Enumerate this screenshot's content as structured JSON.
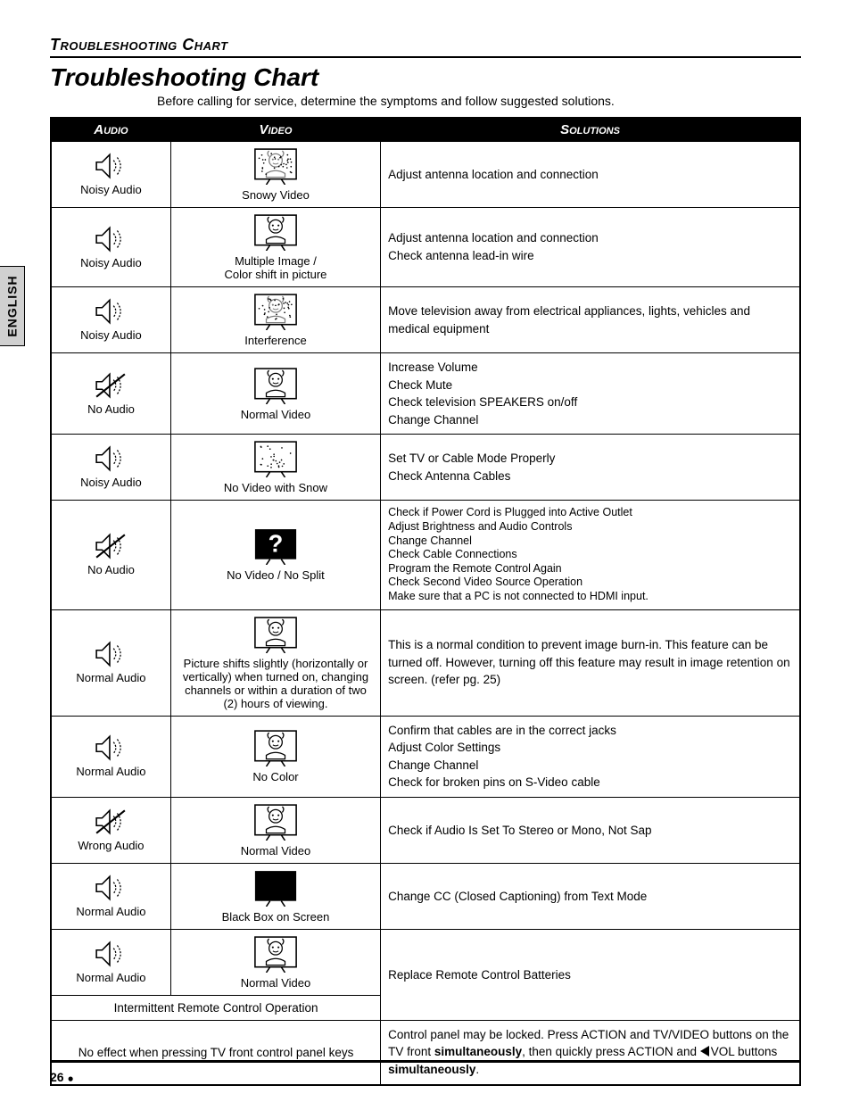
{
  "side_tab": "ENGLISH",
  "section_label": "Troubleshooting Chart",
  "title": "Troubleshooting Chart",
  "subtitle": "Before calling for service, determine the symptoms and follow suggested solutions.",
  "headers": {
    "audio": "Audio",
    "video": "Video",
    "solutions": "Solutions"
  },
  "icons": {
    "speaker_noisy": "speaker-noisy-icon",
    "speaker_mute": "speaker-mute-icon",
    "speaker_normal": "speaker-normal-icon",
    "tv_snow": "tv-snowy-icon",
    "tv_face": "tv-face-icon",
    "tv_dots": "tv-dots-icon",
    "tv_black": "tv-black-icon",
    "tv_question": "tv-question-icon"
  },
  "rows": [
    {
      "audio_icon": "speaker_noisy",
      "audio_label": "Noisy Audio",
      "video_icon": "tv_snow",
      "video_label": "Snowy Video",
      "solutions": [
        "Adjust antenna location and connection"
      ]
    },
    {
      "audio_icon": "speaker_noisy",
      "audio_label": "Noisy Audio",
      "video_icon": "tv_face",
      "video_label": "Multiple Image /\nColor shift in picture",
      "solutions": [
        "Adjust antenna location and connection",
        "Check antenna lead-in wire"
      ]
    },
    {
      "audio_icon": "speaker_noisy",
      "audio_label": "Noisy Audio",
      "video_icon": "tv_snow",
      "video_label": "Interference",
      "solutions": [
        "Move television away from electrical appliances, lights, vehicles and medical equipment"
      ]
    },
    {
      "audio_icon": "speaker_mute",
      "audio_label": "No Audio",
      "video_icon": "tv_face",
      "video_label": "Normal Video",
      "solutions": [
        "Increase Volume",
        "Check Mute",
        "Check television SPEAKERS on/off",
        "Change Channel"
      ]
    },
    {
      "audio_icon": "speaker_noisy",
      "audio_label": "Noisy Audio",
      "video_icon": "tv_dots",
      "video_label": "No Video with Snow",
      "solutions": [
        "Set TV or Cable Mode Properly",
        "Check Antenna Cables"
      ]
    },
    {
      "audio_icon": "speaker_mute",
      "audio_label": "No Audio",
      "video_icon": "tv_question",
      "video_label": "No Video / No Split",
      "tight": true,
      "solutions": [
        "Check if Power Cord is Plugged into Active Outlet",
        "Adjust Brightness and Audio Controls",
        "Change Channel",
        "Check Cable Connections",
        "Program the Remote Control Again",
        "Check Second Video Source Operation",
        "Make sure that a PC is not connected to HDMI input."
      ]
    },
    {
      "audio_icon": "speaker_normal",
      "audio_label": "Normal Audio",
      "video_icon": "tv_face",
      "video_label": "Picture shifts slightly (horizontally or vertically) when turned on, changing channels or within a duration of two (2) hours of viewing.",
      "solutions": [
        "This is a normal condition to prevent image burn-in. This feature can be turned off. However, turning off this feature may result in image retention on screen. (refer pg. 25)"
      ]
    },
    {
      "audio_icon": "speaker_normal",
      "audio_label": "Normal Audio",
      "video_icon": "tv_face",
      "video_label": "No Color",
      "solutions": [
        "Confirm that cables are in the correct jacks",
        "Adjust Color Settings",
        "Change Channel",
        "Check for broken pins on S-Video cable"
      ]
    },
    {
      "audio_icon": "speaker_mute",
      "audio_label": "Wrong Audio",
      "video_icon": "tv_face",
      "video_label": "Normal Video",
      "solutions": [
        "Check if Audio Is Set To Stereo or Mono, Not Sap"
      ]
    },
    {
      "audio_icon": "speaker_normal",
      "audio_label": "Normal Audio",
      "video_icon": "tv_black",
      "video_label": "Black Box on Screen",
      "solutions": [
        "Change CC (Closed Captioning) from Text Mode"
      ]
    },
    {
      "audio_icon": "speaker_normal",
      "audio_label": "Normal Audio",
      "video_icon": "tv_face",
      "video_label": "Normal Video",
      "span_below": "Intermittent Remote Control Operation",
      "solutions": [
        "Replace Remote Control Batteries"
      ]
    },
    {
      "full_left": "No effect when pressing TV front control panel keys",
      "solutions_html": "Control panel may be locked. Press ACTION and TV/VIDEO buttons on the TV front <b>simultaneously</b>, then quickly press ACTION and <span class='tri'></span>VOL buttons <b>simultaneously</b>."
    }
  ],
  "page_number": "26",
  "colors": {
    "header_bg": "#000000",
    "header_fg": "#ffffff",
    "tab_bg": "#d0d0d0",
    "border": "#000000"
  }
}
